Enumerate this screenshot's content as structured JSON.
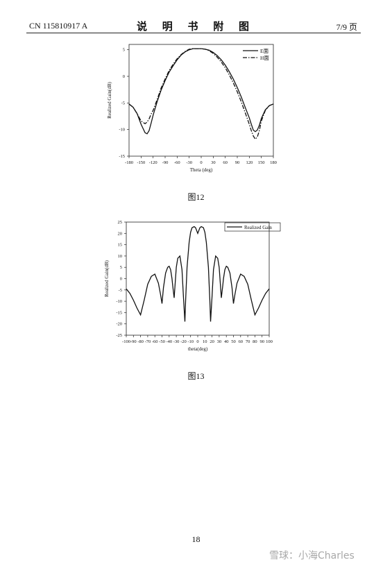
{
  "header": {
    "doc_number": "CN 115810917 A",
    "title": "说 明 书 附 图",
    "page_of": "7/9 页"
  },
  "page_number": "18",
  "watermark": "雪球：小海Charles",
  "figures": [
    {
      "caption": "图12"
    },
    {
      "caption": "图13"
    }
  ],
  "chart_data": [
    {
      "type": "line",
      "xlabel": "Theta (deg)",
      "ylabel": "Realized Gain(dB)",
      "xlim": [
        -180,
        180
      ],
      "ylim": [
        -15,
        6
      ],
      "xticks": [
        -180,
        -150,
        -120,
        -90,
        -60,
        -30,
        0,
        30,
        60,
        90,
        120,
        150,
        180
      ],
      "yticks": [
        5,
        0,
        -5,
        -10,
        -15
      ],
      "grid": false,
      "legend": "top-right",
      "series": [
        {
          "name": "E面",
          "style": "solid",
          "x": [
            -180,
            -170,
            -160,
            -150,
            -140,
            -135,
            -130,
            -125,
            -120,
            -110,
            -100,
            -90,
            -80,
            -70,
            -60,
            -50,
            -40,
            -30,
            -20,
            -10,
            0,
            10,
            20,
            30,
            40,
            50,
            60,
            70,
            80,
            90,
            100,
            110,
            120,
            125,
            130,
            135,
            140,
            145,
            150,
            160,
            170,
            180
          ],
          "values": [
            -5.2,
            -5.8,
            -7.0,
            -9.0,
            -10.6,
            -10.8,
            -10.2,
            -8.8,
            -7.3,
            -4.8,
            -2.6,
            -0.8,
            0.8,
            2.0,
            3.1,
            4.0,
            4.6,
            5.0,
            5.2,
            5.2,
            5.2,
            5.1,
            4.9,
            4.5,
            3.9,
            3.1,
            2.1,
            0.9,
            -0.5,
            -2.1,
            -3.9,
            -5.9,
            -7.8,
            -9.0,
            -10.1,
            -10.4,
            -10.1,
            -9.2,
            -7.9,
            -6.3,
            -5.5,
            -5.2
          ]
        },
        {
          "name": "H面",
          "style": "dashdot",
          "x": [
            -180,
            -170,
            -160,
            -150,
            -140,
            -135,
            -130,
            -125,
            -120,
            -110,
            -100,
            -90,
            -80,
            -70,
            -60,
            -50,
            -40,
            -30,
            -20,
            -10,
            0,
            10,
            20,
            30,
            40,
            50,
            60,
            70,
            80,
            90,
            100,
            110,
            120,
            125,
            130,
            135,
            140,
            145,
            150,
            160,
            170,
            180
          ],
          "values": [
            -5.2,
            -5.8,
            -7.0,
            -8.4,
            -8.9,
            -8.6,
            -8.0,
            -7.1,
            -6.4,
            -4.4,
            -2.2,
            -0.5,
            1.1,
            2.3,
            3.3,
            4.1,
            4.7,
            5.1,
            5.2,
            5.2,
            5.2,
            5.1,
            4.8,
            4.3,
            3.6,
            2.7,
            1.6,
            0.3,
            -1.2,
            -2.9,
            -4.8,
            -6.9,
            -9.0,
            -10.2,
            -11.2,
            -11.8,
            -11.4,
            -10.2,
            -8.4,
            -6.4,
            -5.5,
            -5.2
          ]
        }
      ]
    },
    {
      "type": "line",
      "xlabel": "theta(deg)",
      "ylabel": "Realized Gain(dB)",
      "xlim": [
        -100,
        100
      ],
      "ylim": [
        -25,
        25
      ],
      "xticks": [
        -100,
        -90,
        -80,
        -70,
        -60,
        -50,
        -40,
        -30,
        -20,
        -10,
        0,
        10,
        20,
        30,
        40,
        50,
        60,
        70,
        80,
        90,
        100
      ],
      "yticks": [
        25,
        20,
        15,
        10,
        5,
        0,
        -5,
        -10,
        -15,
        -20,
        -25
      ],
      "grid": false,
      "legend": "top-right",
      "series": [
        {
          "name": "Realized Gain",
          "style": "solid",
          "x": [
            -100,
            -95,
            -90,
            -85,
            -80,
            -75,
            -70,
            -65,
            -60,
            -55,
            -52,
            -50,
            -48,
            -45,
            -42,
            -40,
            -38,
            -36,
            -35,
            -33,
            -30,
            -28,
            -25,
            -22,
            -20,
            -18,
            -17,
            -15,
            -12,
            -10,
            -8,
            -5,
            -3,
            0,
            3,
            5,
            8,
            10,
            12,
            15,
            17,
            18,
            20,
            22,
            25,
            28,
            30,
            33,
            35,
            36,
            38,
            40,
            42,
            45,
            48,
            50,
            52,
            55,
            60,
            65,
            70,
            75,
            80,
            85,
            90,
            95,
            100
          ],
          "values": [
            -4.5,
            -6.5,
            -9.5,
            -13.0,
            -16.0,
            -9.5,
            -2.5,
            1.0,
            2.0,
            -2.0,
            -7.0,
            -11.0,
            -4.0,
            2.5,
            5.0,
            5.5,
            4.0,
            0.0,
            -3.0,
            -8.5,
            5.0,
            9.0,
            10.0,
            4.0,
            -8.0,
            -19.0,
            -10.0,
            5.0,
            16.0,
            20.5,
            22.5,
            23.0,
            22.5,
            20.0,
            22.5,
            23.0,
            22.5,
            20.5,
            16.0,
            5.0,
            -10.0,
            -19.0,
            -8.0,
            4.0,
            10.0,
            9.0,
            5.0,
            -8.5,
            -3.0,
            0.0,
            4.0,
            5.5,
            5.0,
            2.5,
            -4.0,
            -11.0,
            -7.0,
            -2.0,
            2.0,
            1.0,
            -2.5,
            -9.5,
            -16.0,
            -13.0,
            -9.5,
            -6.5,
            -4.5
          ]
        }
      ]
    }
  ]
}
